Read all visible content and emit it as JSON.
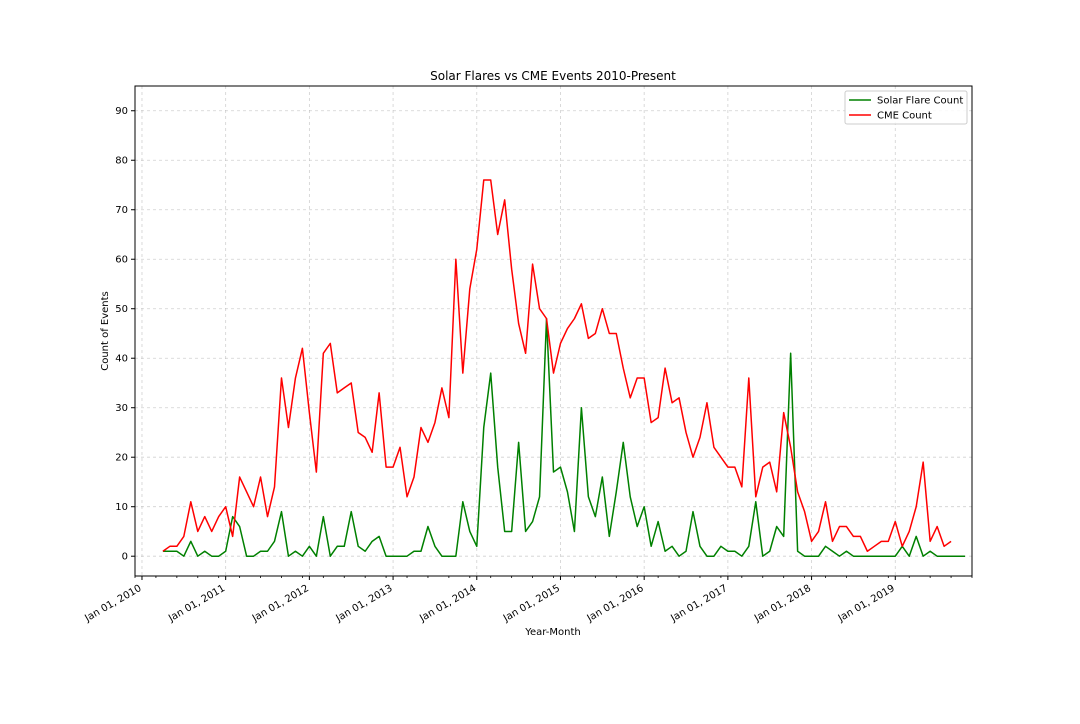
{
  "chart_data": {
    "type": "line",
    "title": "Solar Flares vs CME Events 2010-Present",
    "xlabel": "Year-Month",
    "ylabel": "Count of Events",
    "x_start": "2010-04",
    "x_ticks": [
      "Jan 01, 2010",
      "Jan 01, 2011",
      "Jan 01, 2012",
      "Jan 01, 2013",
      "Jan 01, 2014",
      "Jan 01, 2015",
      "Jan 01, 2016",
      "Jan 01, 2017",
      "Jan 01, 2018",
      "Jan 01, 2019"
    ],
    "xlim": [
      "2009-12",
      "2019-12"
    ],
    "ylim": [
      -4,
      95
    ],
    "y_ticks": [
      0,
      10,
      20,
      30,
      40,
      50,
      60,
      70,
      80,
      90
    ],
    "grid": true,
    "legend_position": "top-right",
    "series": [
      {
        "name": "Solar Flare Count",
        "color": "#008000",
        "values": [
          1,
          1,
          1,
          0,
          3,
          0,
          1,
          0,
          0,
          1,
          8,
          6,
          0,
          0,
          1,
          1,
          3,
          9,
          0,
          1,
          0,
          2,
          0,
          8,
          0,
          2,
          2,
          9,
          2,
          1,
          3,
          4,
          0,
          0,
          0,
          0,
          1,
          1,
          6,
          2,
          0,
          0,
          0,
          11,
          5,
          2,
          26,
          37,
          18,
          5,
          5,
          23,
          5,
          7,
          12,
          48,
          17,
          18,
          13,
          5,
          30,
          12,
          8,
          16,
          4,
          13,
          23,
          12,
          6,
          10,
          2,
          7,
          1,
          2,
          0,
          1,
          9,
          2,
          0,
          0,
          2,
          1,
          1,
          0,
          2,
          11,
          0,
          1,
          6,
          4,
          41,
          1,
          0,
          0,
          0,
          2,
          1,
          0,
          1,
          0,
          0,
          0,
          0,
          0,
          0,
          0,
          2,
          0,
          4,
          0,
          1,
          0,
          0,
          0,
          0,
          0
        ]
      },
      {
        "name": "CME Count",
        "color": "#ff0000",
        "values": [
          1,
          2,
          2,
          4,
          11,
          5,
          8,
          5,
          8,
          10,
          4,
          16,
          13,
          10,
          16,
          8,
          14,
          36,
          26,
          36,
          42,
          29,
          17,
          41,
          43,
          33,
          34,
          35,
          25,
          24,
          21,
          33,
          18,
          18,
          22,
          12,
          16,
          26,
          23,
          27,
          34,
          28,
          60,
          37,
          54,
          62,
          76,
          76,
          65,
          72,
          58,
          47,
          41,
          59,
          50,
          48,
          37,
          43,
          46,
          48,
          51,
          44,
          45,
          50,
          45,
          45,
          38,
          32,
          36,
          36,
          27,
          28,
          38,
          31,
          32,
          25,
          20,
          24,
          31,
          22,
          20,
          18,
          18,
          14,
          36,
          12,
          18,
          19,
          13,
          29,
          22,
          13,
          9,
          3,
          5,
          11,
          3,
          6,
          6,
          4,
          4,
          1,
          2,
          3,
          3,
          7,
          2,
          5,
          10,
          19,
          3,
          6,
          2,
          3
        ]
      }
    ]
  }
}
